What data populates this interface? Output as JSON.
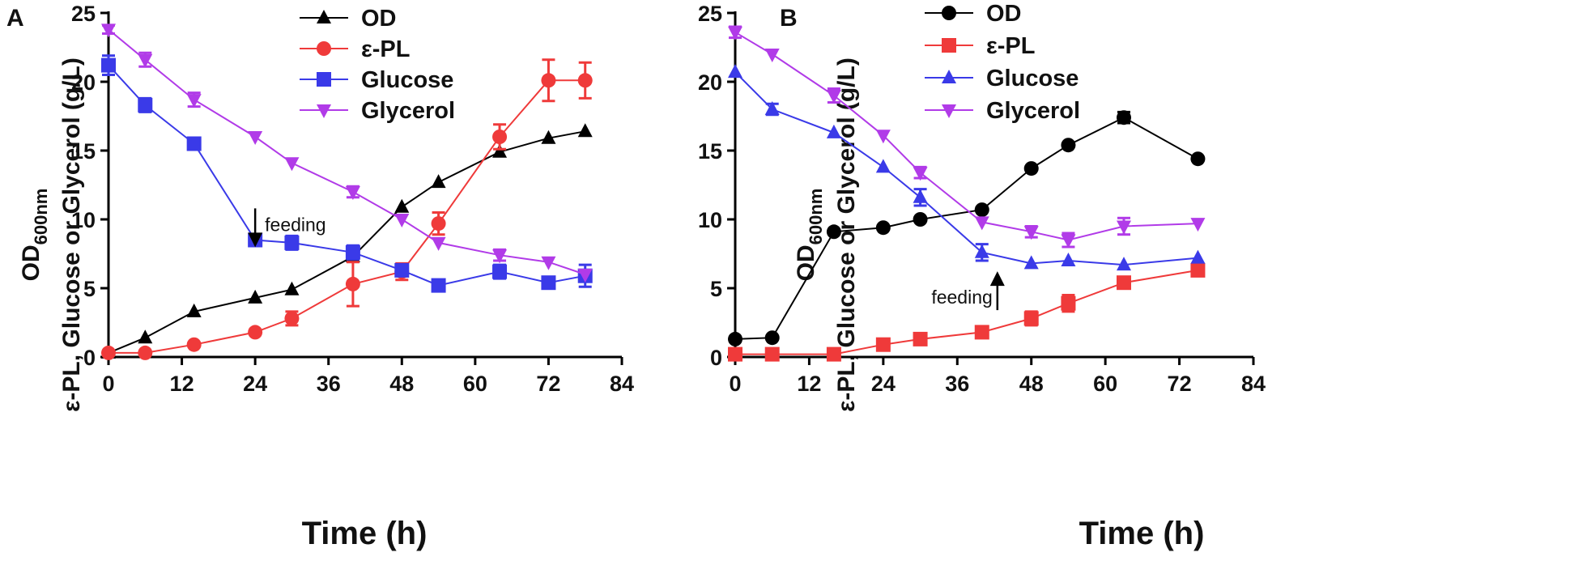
{
  "chart_data": [
    {
      "type": "line",
      "panel": "A",
      "xlabel": "Time (h)",
      "ylabel_line1_main": "OD",
      "ylabel_line1_sub": "600nm",
      "ylabel_line2": "ε-PL, Glucose or Glycerol (g/L)",
      "xlim": [
        0,
        84
      ],
      "ylim": [
        0,
        25
      ],
      "xticks": [
        0,
        12,
        24,
        36,
        48,
        60,
        72,
        84
      ],
      "yticks": [
        0,
        5,
        10,
        15,
        20,
        25
      ],
      "legend_position": "top-center",
      "annotation": {
        "text": "feeding",
        "x": 24,
        "y": 10.8,
        "direction": "down"
      },
      "series": [
        {
          "name": "OD",
          "color": "#000000",
          "marker": "triangle-up",
          "x": [
            0,
            6,
            14,
            24,
            30,
            40,
            48,
            54,
            64,
            72,
            78
          ],
          "values": [
            0.3,
            1.4,
            3.3,
            4.3,
            4.9,
            7.3,
            10.9,
            12.7,
            14.9,
            15.9,
            16.4
          ],
          "errors": [
            0,
            0,
            0,
            0,
            0,
            0,
            0,
            0,
            0,
            0,
            0
          ]
        },
        {
          "name": "ε-PL",
          "color": "#ef3a3a",
          "marker": "circle",
          "x": [
            0,
            6,
            14,
            24,
            30,
            40,
            48,
            54,
            64,
            72,
            78
          ],
          "values": [
            0.3,
            0.3,
            0.9,
            1.8,
            2.8,
            5.3,
            6.2,
            9.7,
            16.0,
            20.1,
            20.1
          ],
          "errors": [
            0,
            0,
            0,
            0,
            0.5,
            1.6,
            0.6,
            0.8,
            0.9,
            1.5,
            1.3
          ]
        },
        {
          "name": "Glucose",
          "color": "#3a3ae8",
          "marker": "square",
          "x": [
            0,
            6,
            14,
            24,
            30,
            40,
            48,
            54,
            64,
            72,
            78
          ],
          "values": [
            21.2,
            18.3,
            15.5,
            8.5,
            8.3,
            7.6,
            6.3,
            5.2,
            6.2,
            5.4,
            5.9
          ],
          "errors": [
            0.7,
            0.5,
            0.4,
            0.4,
            0.5,
            0.5,
            0.3,
            0.2,
            0.5,
            0.4,
            0.8
          ]
        },
        {
          "name": "Glycerol",
          "color": "#b13be8",
          "marker": "triangle-down",
          "x": [
            0,
            6,
            14,
            24,
            30,
            40,
            48,
            54,
            64,
            72,
            78
          ],
          "values": [
            23.8,
            21.6,
            18.7,
            16.0,
            14.1,
            12.0,
            10.0,
            8.3,
            7.4,
            6.9,
            6.0
          ],
          "errors": [
            0.3,
            0.5,
            0.5,
            0,
            0,
            0.4,
            0,
            0,
            0.4,
            0,
            0
          ]
        }
      ]
    },
    {
      "type": "line",
      "panel": "B",
      "xlabel": "Time (h)",
      "ylabel_line1_main": "OD",
      "ylabel_line1_sub": "600nm",
      "ylabel_line2": "ε-PL, Glucose or Glycerol (g/L)",
      "xlim": [
        0,
        84
      ],
      "ylim": [
        0,
        25
      ],
      "xticks": [
        0,
        12,
        24,
        36,
        48,
        60,
        72,
        84
      ],
      "yticks": [
        0,
        5,
        10,
        15,
        20,
        25
      ],
      "legend_position": "top-center",
      "annotation": {
        "text": "feeding",
        "x": 42.5,
        "y": 4.7,
        "direction": "up"
      },
      "series": [
        {
          "name": "OD",
          "color": "#000000",
          "marker": "circle",
          "x": [
            0,
            6,
            16,
            24,
            30,
            40,
            48,
            54,
            63,
            75
          ],
          "values": [
            1.3,
            1.4,
            9.1,
            9.4,
            10.0,
            10.7,
            13.7,
            15.4,
            17.4,
            14.4
          ],
          "errors": [
            0,
            0,
            0,
            0,
            0,
            0,
            0,
            0,
            0.4,
            0
          ]
        },
        {
          "name": "ε-PL",
          "color": "#ef3a3a",
          "marker": "square",
          "x": [
            0,
            6,
            16,
            24,
            30,
            40,
            48,
            54,
            63,
            75
          ],
          "values": [
            0.2,
            0.2,
            0.2,
            0.9,
            1.3,
            1.8,
            2.8,
            3.9,
            5.4,
            6.3
          ],
          "errors": [
            0,
            0,
            0,
            0,
            0,
            0,
            0.5,
            0.6,
            0,
            0
          ]
        },
        {
          "name": "Glucose",
          "color": "#3a3ae8",
          "marker": "triangle-up",
          "x": [
            0,
            6,
            16,
            24,
            30,
            40,
            48,
            54,
            63,
            75
          ],
          "values": [
            20.7,
            18.0,
            16.3,
            13.8,
            11.6,
            7.6,
            6.8,
            7.0,
            6.7,
            7.2
          ],
          "errors": [
            0,
            0.4,
            0,
            0,
            0.6,
            0.6,
            0,
            0,
            0,
            0
          ]
        },
        {
          "name": "Glycerol",
          "color": "#b13be8",
          "marker": "triangle-down",
          "x": [
            0,
            6,
            16,
            24,
            30,
            40,
            48,
            54,
            63,
            75
          ],
          "values": [
            23.6,
            22.0,
            19.0,
            16.1,
            13.4,
            9.8,
            9.1,
            8.5,
            9.5,
            9.7
          ],
          "errors": [
            0.4,
            0,
            0.5,
            0,
            0.4,
            0,
            0.4,
            0.5,
            0.6,
            0
          ]
        }
      ]
    }
  ]
}
